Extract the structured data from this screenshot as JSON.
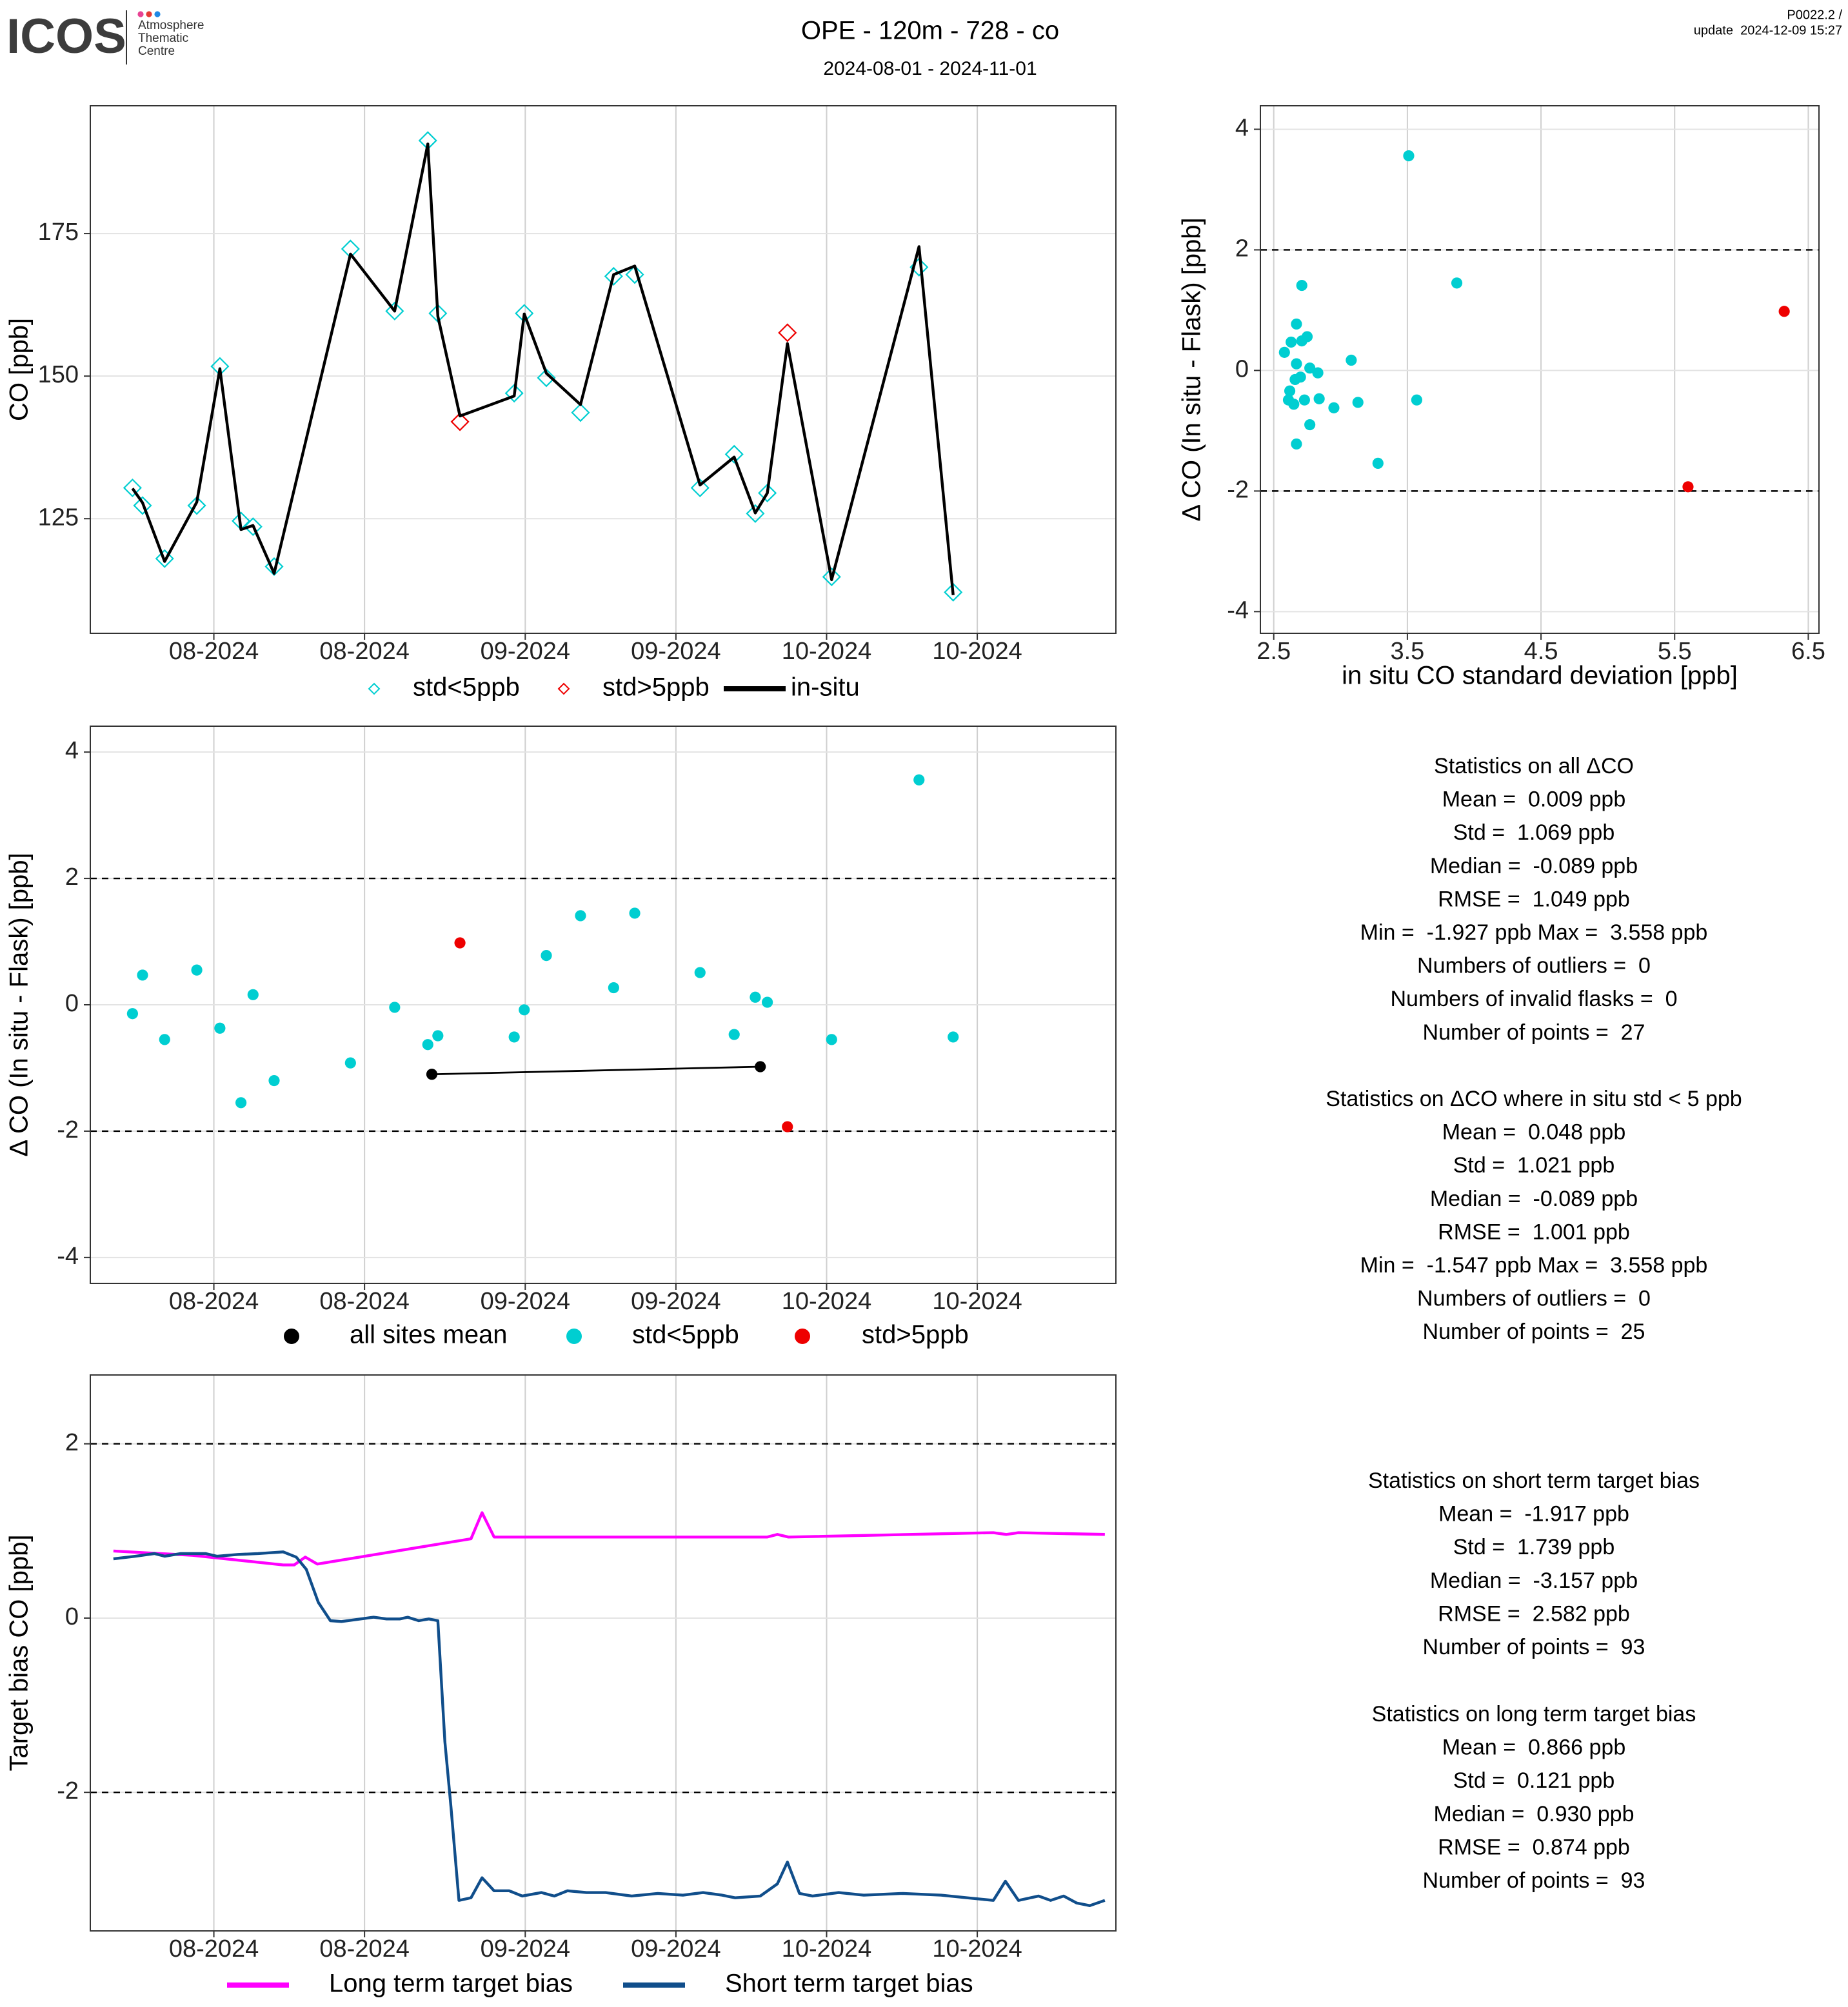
{
  "header": {
    "logo": "ICOS",
    "logo_lines": [
      "Atmosphere",
      "Thematic",
      "Centre"
    ],
    "title": "OPE - 120m - 728 - co",
    "subtitle": "2024-08-01 - 2024-11-01",
    "version": "P0022.2 /",
    "update": "update  2024-12-09 15:27"
  },
  "chart_data": [
    {
      "type": "line",
      "ylabel": "CO [ppb]",
      "grid": true,
      "xlim": [
        -12.3,
        89.8
      ],
      "xticks": [
        {
          "value": 0,
          "label": "08-2024"
        },
        {
          "value": 15,
          "label": "08-2024"
        },
        {
          "value": 31,
          "label": "09-2024"
        },
        {
          "value": 46,
          "label": "09-2024"
        },
        {
          "value": 61,
          "label": "10-2024"
        },
        {
          "value": 76,
          "label": "10-2024"
        }
      ],
      "ylim": [
        104.9,
        197.4
      ],
      "yticks": [
        125,
        150,
        175
      ],
      "series": [
        {
          "name": "std<5ppb",
          "color": "#00CED1",
          "marker": "diamond",
          "x": [
            -8.1,
            -7.1,
            -4.9,
            -1.7,
            0.6,
            2.7,
            3.9,
            6.0,
            13.6,
            18.0,
            21.3,
            22.3,
            29.9,
            30.9,
            33.1,
            36.5,
            39.8,
            41.9,
            48.4,
            51.8,
            53.9,
            55.1,
            61.5,
            70.2,
            73.6
          ],
          "values": [
            130.4,
            127.3,
            118.0,
            127.3,
            151.7,
            124.6,
            123.6,
            116.6,
            172.3,
            161.4,
            191.3,
            161.0,
            147.0,
            161.0,
            149.7,
            143.6,
            167.5,
            167.8,
            130.4,
            136.3,
            125.9,
            129.5,
            114.8,
            169.1,
            112.1
          ]
        },
        {
          "name": "std>5ppb",
          "color": "#EE0000",
          "marker": "diamond",
          "x": [
            24.5,
            57.1
          ],
          "values": [
            142.0,
            157.6
          ]
        },
        {
          "name": "in-situ",
          "color": "#000000",
          "marker": "line",
          "x": [
            -8.1,
            -7.1,
            -4.9,
            -1.7,
            0.6,
            2.7,
            3.9,
            6.0,
            13.6,
            18.0,
            21.3,
            22.3,
            24.5,
            29.9,
            30.9,
            33.1,
            36.5,
            39.8,
            41.9,
            48.4,
            51.8,
            53.9,
            55.1,
            57.1,
            61.5,
            70.2,
            73.6
          ],
          "values": [
            130.3,
            127.8,
            117.5,
            127.9,
            151.3,
            123.1,
            123.8,
            115.4,
            171.4,
            161.4,
            190.7,
            160.5,
            143.0,
            146.5,
            160.9,
            150.5,
            145.0,
            167.8,
            169.3,
            130.9,
            135.8,
            126.0,
            129.5,
            155.7,
            114.3,
            172.7,
            111.6
          ]
        }
      ]
    },
    {
      "type": "scatter",
      "xlabel": "in situ CO standard deviation [ppb]",
      "ylabel": "Δ CO (In situ - Flask) [ppb]",
      "grid": true,
      "xlim": [
        2.4,
        6.58
      ],
      "xticks": [
        2.5,
        3.5,
        4.5,
        5.5,
        6.5
      ],
      "ylim": [
        -4.36,
        4.39
      ],
      "yticks": [
        -4,
        -2,
        0,
        2,
        4
      ],
      "hlines": [
        -2,
        2
      ],
      "series": [
        {
          "color": "#00CED1",
          "marker": "dot",
          "x": [
            2.58,
            2.63,
            2.67,
            2.71,
            2.75,
            2.71,
            2.62,
            2.61,
            2.65,
            2.67,
            2.66,
            2.73,
            2.77,
            2.83,
            2.84,
            2.77,
            2.67,
            2.95,
            3.08,
            3.13,
            3.28,
            3.51,
            3.57,
            3.87,
            2.7
          ],
          "values": [
            0.3,
            0.47,
            0.77,
            0.49,
            0.56,
            1.41,
            -0.34,
            -0.49,
            -0.56,
            0.11,
            -0.15,
            -0.49,
            0.04,
            -0.04,
            -0.47,
            -0.9,
            -1.22,
            -0.62,
            0.17,
            -0.53,
            -1.54,
            3.56,
            -0.49,
            1.45,
            -0.11
          ]
        },
        {
          "color": "#EE0000",
          "marker": "dot",
          "x": [
            6.32,
            5.6
          ],
          "values": [
            0.98,
            -1.93
          ]
        }
      ]
    },
    {
      "type": "scatter",
      "ylabel": "Δ CO (In situ - Flask) [ppb]",
      "grid": true,
      "xlim": [
        -12.3,
        89.8
      ],
      "xticks": [
        {
          "value": 0,
          "label": "08-2024"
        },
        {
          "value": 15,
          "label": "08-2024"
        },
        {
          "value": 31,
          "label": "09-2024"
        },
        {
          "value": 46,
          "label": "09-2024"
        },
        {
          "value": 61,
          "label": "10-2024"
        },
        {
          "value": 76,
          "label": "10-2024"
        }
      ],
      "ylim": [
        -4.41,
        4.41
      ],
      "yticks": [
        -4,
        -2,
        0,
        2,
        4
      ],
      "hlines": [
        -2,
        2
      ],
      "series": [
        {
          "name": "all sites mean",
          "color": "#000000",
          "marker": "line+dot",
          "x": [
            21.7,
            54.4
          ],
          "values": [
            -1.1,
            -0.98
          ]
        },
        {
          "name": "std<5ppb",
          "color": "#00CED1",
          "marker": "dot",
          "x": [
            -8.1,
            -7.1,
            -4.9,
            -1.7,
            0.6,
            2.7,
            3.9,
            6.0,
            13.6,
            18.0,
            21.3,
            22.3,
            29.9,
            30.9,
            33.1,
            36.5,
            39.8,
            41.9,
            48.4,
            51.8,
            53.9,
            55.1,
            61.5,
            70.2,
            73.6
          ],
          "values": [
            -0.14,
            0.47,
            -0.55,
            0.55,
            -0.37,
            -1.55,
            0.16,
            -1.2,
            -0.92,
            -0.04,
            -0.63,
            -0.49,
            -0.51,
            -0.08,
            0.78,
            1.41,
            0.27,
            1.45,
            0.51,
            -0.47,
            0.12,
            0.04,
            -0.55,
            3.56,
            -0.51
          ]
        },
        {
          "name": "std>5ppb",
          "color": "#EE0000",
          "marker": "dot",
          "x": [
            24.5,
            57.1
          ],
          "values": [
            0.98,
            -1.93
          ]
        }
      ]
    },
    {
      "type": "line",
      "ylabel": "Target bias CO [ppb]",
      "grid": true,
      "xlim": [
        -12.3,
        89.8
      ],
      "xticks": [
        {
          "value": 0,
          "label": "08-2024"
        },
        {
          "value": 15,
          "label": "08-2024"
        },
        {
          "value": 31,
          "label": "09-2024"
        },
        {
          "value": 46,
          "label": "09-2024"
        },
        {
          "value": 61,
          "label": "10-2024"
        },
        {
          "value": 76,
          "label": "10-2024"
        }
      ],
      "ylim": [
        -3.59,
        2.79
      ],
      "yticks": [
        -2,
        0,
        2
      ],
      "hlines": [
        -2,
        2
      ],
      "series": [
        {
          "name": "Long term target bias",
          "color": "#FF00FF",
          "marker": "line",
          "x": [
            -10.0,
            -2.1,
            6.9,
            8.0,
            9.1,
            10.3,
            25.6,
            26.7,
            27.9,
            55.1,
            56.1,
            57.2,
            77.6,
            78.9,
            80.1,
            88.7
          ],
          "values": [
            0.77,
            0.72,
            0.61,
            0.61,
            0.7,
            0.62,
            0.91,
            1.21,
            0.93,
            0.93,
            0.96,
            0.93,
            0.98,
            0.96,
            0.98,
            0.96
          ]
        },
        {
          "name": "Short term target bias",
          "color": "#104E8B",
          "marker": "line",
          "x": [
            -10.0,
            -7.8,
            -5.9,
            -4.9,
            -3.3,
            -0.8,
            0.3,
            2.4,
            4.4,
            6.9,
            8.2,
            9.2,
            10.4,
            11.6,
            12.7,
            14.6,
            15.9,
            17.2,
            18.5,
            19.3,
            20.4,
            21.4,
            22.3,
            23.0,
            23.6,
            24.4,
            25.6,
            26.7,
            27.9,
            29.4,
            30.7,
            32.6,
            33.9,
            35.2,
            37.1,
            39.0,
            41.6,
            44.2,
            46.7,
            48.7,
            50.6,
            51.9,
            54.4,
            56.1,
            57.1,
            58.3,
            59.6,
            62.2,
            64.7,
            68.6,
            72.4,
            75.0,
            77.6,
            78.8,
            80.1,
            82.1,
            83.3,
            84.6,
            85.9,
            87.2,
            88.7
          ],
          "values": [
            0.68,
            0.71,
            0.74,
            0.71,
            0.74,
            0.74,
            0.71,
            0.73,
            0.74,
            0.76,
            0.7,
            0.56,
            0.18,
            -0.03,
            -0.04,
            -0.01,
            0.01,
            -0.01,
            -0.01,
            0.01,
            -0.03,
            -0.01,
            -0.03,
            -1.42,
            -2.16,
            -3.24,
            -3.21,
            -2.98,
            -3.13,
            -3.13,
            -3.19,
            -3.15,
            -3.19,
            -3.13,
            -3.15,
            -3.15,
            -3.19,
            -3.16,
            -3.18,
            -3.15,
            -3.18,
            -3.21,
            -3.19,
            -3.05,
            -2.8,
            -3.16,
            -3.19,
            -3.15,
            -3.18,
            -3.16,
            -3.18,
            -3.21,
            -3.24,
            -3.02,
            -3.24,
            -3.19,
            -3.24,
            -3.19,
            -3.27,
            -3.3,
            -3.24
          ]
        }
      ]
    }
  ],
  "stats": [
    {
      "lines": [
        "Statistics on all ΔCO",
        "Mean =  0.009 ppb",
        "Std =  1.069 ppb",
        "Median =  -0.089 ppb",
        "RMSE =  1.049 ppb",
        "Min =  -1.927 ppb Max =  3.558 ppb",
        "Numbers of outliers =  0",
        "Numbers of invalid flasks =  0",
        "Number of points =  27"
      ]
    },
    {
      "lines": [
        "Statistics on ΔCO where in situ std < 5 ppb",
        "Mean =  0.048 ppb",
        "Std =  1.021 ppb",
        "Median =  -0.089 ppb",
        "RMSE =  1.001 ppb",
        "Min =  -1.547 ppb Max =  3.558 ppb",
        "Numbers of outliers =  0",
        "Number of points =  25"
      ]
    },
    {
      "lines": [
        "Statistics on short term target bias",
        "Mean =  -1.917 ppb",
        "Std =  1.739 ppb",
        "Median =  -3.157 ppb",
        "RMSE =  2.582 ppb",
        "Number of points =  93"
      ]
    },
    {
      "lines": [
        "Statistics on long term target bias",
        "Mean =  0.866 ppb",
        "Std =  0.121 ppb",
        "Median =  0.930 ppb",
        "RMSE =  0.874 ppb",
        "Number of points =  93"
      ]
    }
  ]
}
